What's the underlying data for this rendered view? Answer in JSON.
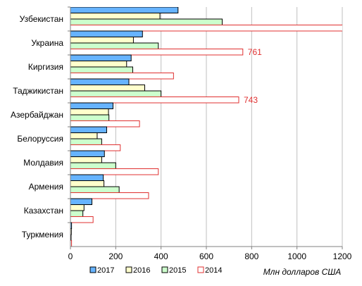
{
  "chart_data": {
    "type": "bar",
    "orientation": "horizontal",
    "categories": [
      "Узбекистан",
      "Украина",
      "Киргизия",
      "Таджикистан",
      "Азербайджан",
      "Белоруссия",
      "Молдавия",
      "Армения",
      "Казахстан",
      "Туркмения"
    ],
    "series": [
      {
        "name": "2017",
        "color": "#66b3ff",
        "values": [
          475,
          318,
          268,
          258,
          188,
          160,
          150,
          145,
          95,
          5
        ]
      },
      {
        "name": "2016",
        "color": "#ffffcc",
        "values": [
          395,
          278,
          248,
          328,
          168,
          118,
          138,
          148,
          60,
          4
        ]
      },
      {
        "name": "2015",
        "color": "#ccffcc",
        "values": [
          670,
          388,
          275,
          400,
          170,
          138,
          200,
          215,
          55,
          3
        ]
      },
      {
        "name": "2014",
        "color": "#ffffff",
        "border": "#e03030",
        "values": [
          1250,
          761,
          455,
          743,
          305,
          220,
          388,
          345,
          100,
          5
        ]
      }
    ],
    "data_labels": [
      {
        "category": "Украина",
        "series": "2014",
        "text": "761"
      },
      {
        "category": "Таджикистан",
        "series": "2014",
        "text": "743"
      }
    ],
    "xlim": [
      0,
      1200
    ],
    "x_ticks": [
      "0",
      "200",
      "400",
      "600",
      "800",
      "1000",
      "1200"
    ],
    "x_tick_values": [
      0,
      200,
      400,
      600,
      800,
      1000,
      1200
    ],
    "unit_label": "Млн долларов США",
    "grid": "vertical",
    "legend_position": "bottom-left"
  }
}
